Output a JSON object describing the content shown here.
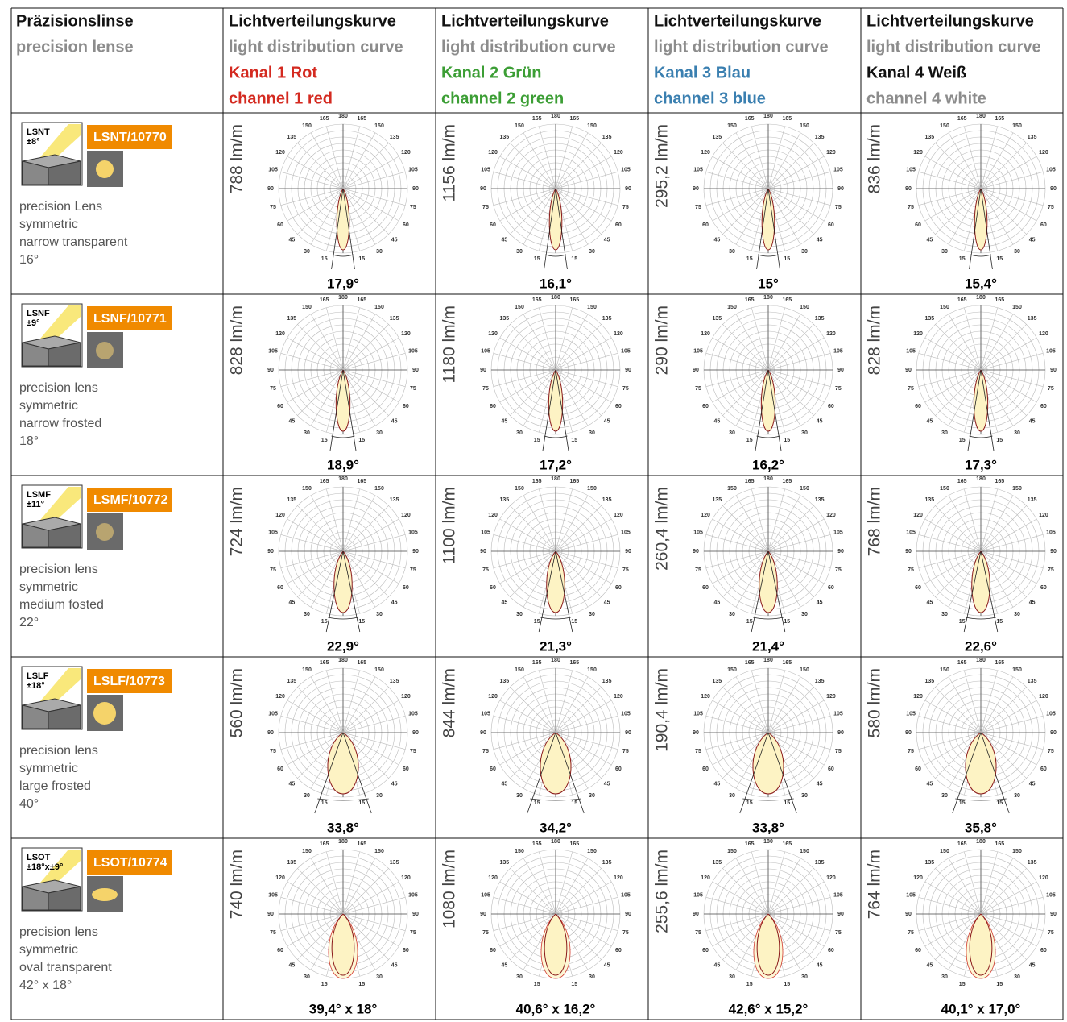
{
  "header": {
    "lens": {
      "de": "Präzisionslinse",
      "en": "precision lense"
    },
    "channels": [
      {
        "title_de": "Lichtverteilungskurve",
        "title_en": "light distribution curve",
        "name_de": "Kanal 1 Rot",
        "name_en": "channel 1 red",
        "color": "#d42a20",
        "color_en": "#d42a20"
      },
      {
        "title_de": "Lichtverteilungskurve",
        "title_en": "light distribution curve",
        "name_de": "Kanal 2 Grün",
        "name_en": "channel 2 green",
        "color": "#3c9e35",
        "color_en": "#3c9e35"
      },
      {
        "title_de": "Lichtverteilungskurve",
        "title_en": "light distribution curve",
        "name_de": "Kanal 3 Blau",
        "name_en": "channel 3 blue",
        "color": "#3a7fb0",
        "color_en": "#3a7fb0"
      },
      {
        "title_de": "Lichtverteilungskurve",
        "title_en": "light distribution curve",
        "name_de": "Kanal 4 Weiß",
        "name_en": "channel 4 white",
        "color": "#111111",
        "color_en": "#8c8c8c"
      }
    ]
  },
  "polar_labels": [
    0,
    15,
    30,
    45,
    60,
    75,
    90,
    105,
    120,
    135,
    150,
    165,
    180
  ],
  "rows": [
    {
      "code": "LSNT",
      "tolerance": "±8°",
      "article": "LSNT/10770",
      "description": [
        "precision Lens",
        "symmetric",
        "narrow transparent",
        "16°"
      ],
      "cells": [
        {
          "flux": "788 lm/m",
          "angle": "17,9°"
        },
        {
          "flux": "1156 lm/m",
          "angle": "16,1°"
        },
        {
          "flux": "295,2 lm/m",
          "angle": "15°"
        },
        {
          "flux": "836 lm/m",
          "angle": "15,4°"
        }
      ]
    },
    {
      "code": "LSNF",
      "tolerance": "±9°",
      "article": "LSNF/10771",
      "description": [
        "precision lens",
        "symmetric",
        "narrow frosted",
        "18°"
      ],
      "cells": [
        {
          "flux": "828 lm/m",
          "angle": "18,9°"
        },
        {
          "flux": "1180 lm/m",
          "angle": "17,2°"
        },
        {
          "flux": "290 lm/m",
          "angle": "16,2°"
        },
        {
          "flux": "828 lm/m",
          "angle": "17,3°"
        }
      ]
    },
    {
      "code": "LSMF",
      "tolerance": "±11°",
      "article": "LSMF/10772",
      "description": [
        "precision lens",
        "symmetric",
        "medium fosted",
        "22°"
      ],
      "cells": [
        {
          "flux": "724 lm/m",
          "angle": "22,9°"
        },
        {
          "flux": "1100 lm/m",
          "angle": "21,3°"
        },
        {
          "flux": "260,4 lm/m",
          "angle": "21,4°"
        },
        {
          "flux": "768 lm/m",
          "angle": "22,6°"
        }
      ]
    },
    {
      "code": "LSLF",
      "tolerance": "±18°",
      "article": "LSLF/10773",
      "description": [
        "precision lens",
        "symmetric",
        "large frosted",
        "40°"
      ],
      "cells": [
        {
          "flux": "560 lm/m",
          "angle": "33,8°"
        },
        {
          "flux": "844 lm/m",
          "angle": "34,2°"
        },
        {
          "flux": "190,4 lm/m",
          "angle": "33,8°"
        },
        {
          "flux": "580 lm/m",
          "angle": "35,8°"
        }
      ]
    },
    {
      "code": "LSOT",
      "tolerance": "±18°x±9°",
      "article": "LSOT/10774",
      "description": [
        "precision lens",
        "symmetric",
        "oval transparent",
        "42° x 18°"
      ],
      "cells": [
        {
          "flux": "740 lm/m",
          "angle": "39,4° x 18°"
        },
        {
          "flux": "1080 lm/m",
          "angle": "40,6° x 16,2°"
        },
        {
          "flux": "255,6 lm/m",
          "angle": "42,6° x 15,2°"
        },
        {
          "flux": "764 lm/m",
          "angle": "40,1° x 17,0°"
        }
      ]
    }
  ]
}
